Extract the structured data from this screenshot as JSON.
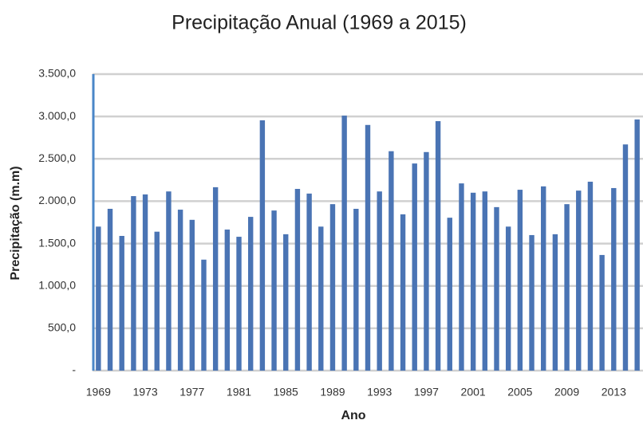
{
  "chart_data": {
    "type": "bar",
    "title": "Precipitação Anual (1969 a 2015)",
    "x_label": "Ano",
    "y_label": "Precipitação (m.m)",
    "categories": [
      "1969",
      null,
      null,
      null,
      "1973",
      null,
      null,
      null,
      "1977",
      null,
      null,
      null,
      "1981",
      null,
      null,
      null,
      "1985",
      null,
      null,
      null,
      "1989",
      null,
      null,
      null,
      "1993",
      null,
      null,
      null,
      "1997",
      null,
      null,
      null,
      "2001",
      null,
      null,
      null,
      "2005",
      null,
      null,
      null,
      "2009",
      null,
      null,
      null,
      "2013",
      null,
      null
    ],
    "values": [
      1700,
      1910,
      1590,
      2060,
      2080,
      1640,
      2115,
      1900,
      1780,
      1310,
      2165,
      1665,
      1580,
      1815,
      2955,
      1890,
      1610,
      2145,
      2090,
      1700,
      1965,
      3010,
      1910,
      2900,
      2115,
      2590,
      1845,
      2445,
      2580,
      2945,
      1805,
      2210,
      2100,
      2115,
      1930,
      1700,
      2135,
      1600,
      2175,
      1610,
      1965,
      2125,
      2230,
      1365,
      2155,
      2670,
      2965
    ],
    "color": "#4a74b4",
    "ylim": [
      0,
      3500
    ],
    "yticks": [
      {
        "value": 0,
        "label": "-"
      },
      {
        "value": 500,
        "label": "500,0"
      },
      {
        "value": 1000,
        "label": "1.000,0"
      },
      {
        "value": 1500,
        "label": "1.500,0"
      },
      {
        "value": 2000,
        "label": "2.000,0"
      },
      {
        "value": 2500,
        "label": "2.500,0"
      },
      {
        "value": 3000,
        "label": "3.000,0"
      },
      {
        "value": 3500,
        "label": "3.500,0"
      }
    ],
    "grid": true
  }
}
